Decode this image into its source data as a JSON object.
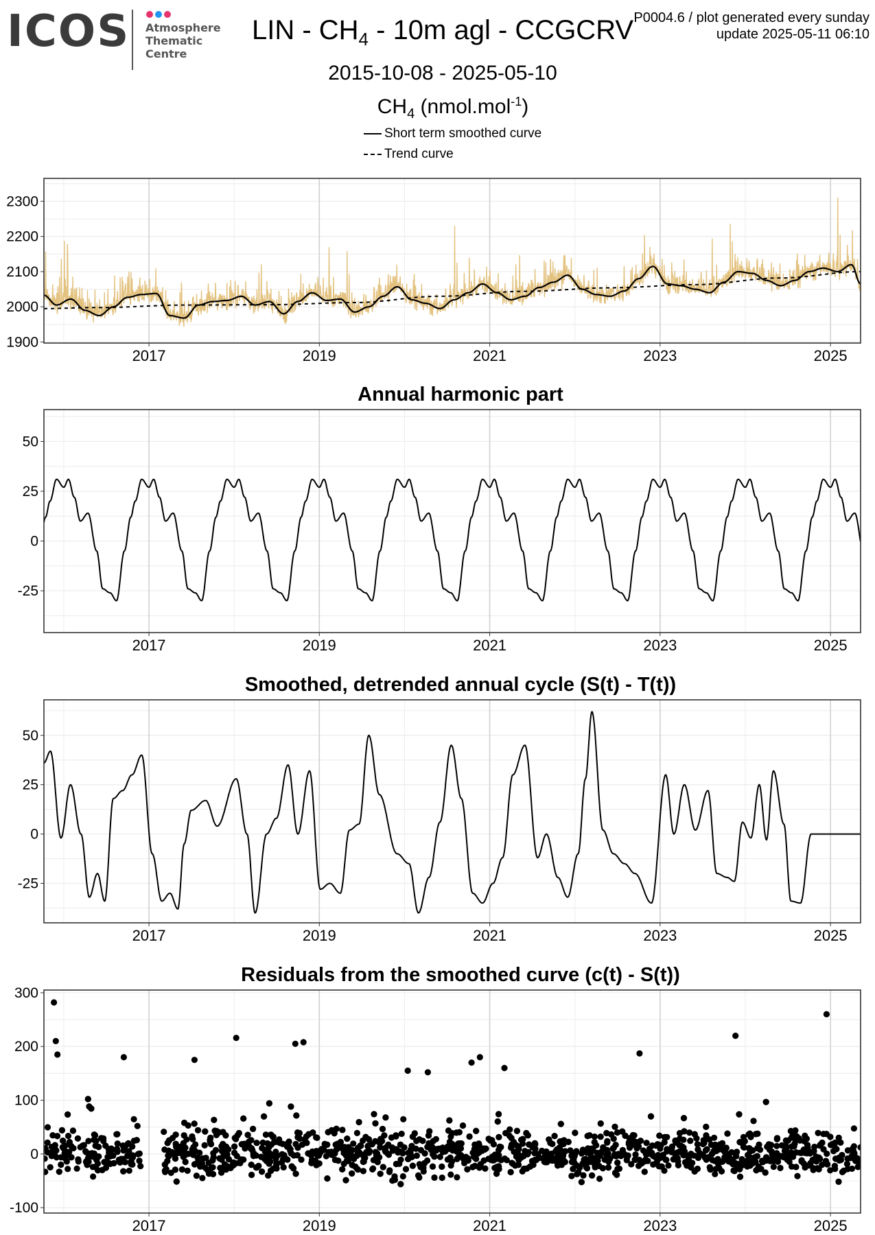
{
  "logo": {
    "wordmark": "ICOS",
    "lines": [
      "Atmosphere",
      "Thematic",
      "Centre"
    ],
    "dot_colors": [
      "#e6336b",
      "#2196f3",
      "#e6336b"
    ]
  },
  "header": {
    "title_before": "LIN - CH",
    "title_sub": "4",
    "title_after": " - 10m agl - CCGCRV",
    "meta_line1": "P0004.6 / plot generated every sunday",
    "meta_line2": "update  2025-05-11 06:10",
    "date_range": "2015-10-08 - 2025-05-10",
    "unit_before": "CH",
    "unit_sub": "4",
    "unit_mid": " (nmol.mol",
    "unit_sup": "-1",
    "unit_after": ")"
  },
  "legend": {
    "items": [
      {
        "label": "Short term smoothed curve",
        "style": "solid"
      },
      {
        "label": "Trend curve",
        "style": "dashed"
      }
    ]
  },
  "colors": {
    "raw_series": "#e3c27f",
    "line": "#000000",
    "grid_major": "#d0d0d0",
    "grid_minor": "#ececec",
    "logo_text": "#3b3b3b"
  },
  "chart_data": [
    {
      "type": "line",
      "title": "",
      "ylabel": "",
      "xlim": [
        "2015-10-08",
        "2025-05-10"
      ],
      "ylim": [
        1897,
        2365
      ],
      "x_ticks": [
        "2017",
        "2019",
        "2021",
        "2023",
        "2025"
      ],
      "y_ticks": [
        1900,
        2000,
        2100,
        2200,
        2300
      ],
      "series": [
        {
          "name": "",
          "role": "raw hourly/daily CH4",
          "color": "#e3c27f",
          "note": "dense noisy signal around smoothed curve, extremes ~1925 to ~2355"
        },
        {
          "name": "Short term smoothed curve",
          "style": "solid",
          "x": [
            "2015-10-08",
            "2015-12-01",
            "2016-02-01",
            "2016-04-01",
            "2016-06-01",
            "2016-08-01",
            "2016-10-01",
            "2016-12-01",
            "2017-02-01",
            "2017-04-01",
            "2017-06-01",
            "2017-08-01",
            "2017-10-01",
            "2017-12-01",
            "2018-02-01",
            "2018-04-01",
            "2018-06-01",
            "2018-08-01",
            "2018-10-01",
            "2018-12-01",
            "2019-02-01",
            "2019-04-01",
            "2019-06-01",
            "2019-08-01",
            "2019-10-01",
            "2019-12-01",
            "2020-02-01",
            "2020-04-01",
            "2020-06-01",
            "2020-08-01",
            "2020-10-01",
            "2020-12-01",
            "2021-02-01",
            "2021-04-01",
            "2021-06-01",
            "2021-08-01",
            "2021-10-01",
            "2021-12-01",
            "2022-02-01",
            "2022-04-01",
            "2022-06-01",
            "2022-08-01",
            "2022-10-01",
            "2022-12-01",
            "2023-02-01",
            "2023-04-01",
            "2023-06-01",
            "2023-08-01",
            "2023-10-01",
            "2023-12-01",
            "2024-02-01",
            "2024-04-01",
            "2024-06-01",
            "2024-08-01",
            "2024-10-01",
            "2024-12-01",
            "2025-02-01",
            "2025-04-01",
            "2025-05-10"
          ],
          "values": [
            2033,
            2005,
            2022,
            1990,
            1975,
            2000,
            2027,
            2035,
            2038,
            1975,
            1968,
            2005,
            2015,
            2018,
            2030,
            2005,
            2015,
            1980,
            2015,
            2040,
            2018,
            2022,
            1985,
            2000,
            2030,
            2057,
            2020,
            2010,
            1995,
            2020,
            2040,
            2065,
            2040,
            2020,
            2030,
            2055,
            2070,
            2090,
            2050,
            2035,
            2030,
            2045,
            2080,
            2115,
            2065,
            2060,
            2050,
            2040,
            2070,
            2100,
            2095,
            2075,
            2060,
            2075,
            2100,
            2110,
            2100,
            2120,
            2065
          ]
        },
        {
          "name": "Trend curve",
          "style": "dashed",
          "x": [
            "2015-10-08",
            "2016-06-01",
            "2017-06-01",
            "2018-06-01",
            "2019-06-01",
            "2020-06-01",
            "2021-06-01",
            "2022-06-01",
            "2023-06-01",
            "2024-06-01",
            "2025-05-10"
          ],
          "values": [
            1995,
            1998,
            2005,
            2006,
            2012,
            2030,
            2044,
            2054,
            2063,
            2082,
            2100
          ]
        }
      ]
    },
    {
      "type": "line",
      "title": "Annual harmonic part",
      "ylabel": "",
      "xlim": [
        "2015-10-08",
        "2025-05-10"
      ],
      "ylim": [
        -46,
        66
      ],
      "x_ticks": [
        "2017",
        "2019",
        "2021",
        "2023",
        "2025"
      ],
      "y_ticks": [
        -25,
        0,
        25,
        50
      ],
      "series": [
        {
          "name": "",
          "periodic": "yearly",
          "phase_dates": [
            "01-01",
            "01-21",
            "02-15",
            "03-13",
            "04-15",
            "05-22",
            "06-17",
            "07-18",
            "08-15",
            "09-18",
            "10-15",
            "11-03",
            "12-01",
            "12-31"
          ],
          "phase_values": [
            27,
            31,
            22,
            10,
            14,
            -5,
            -24,
            -26,
            -30,
            -5,
            12,
            20,
            31,
            27
          ]
        }
      ]
    },
    {
      "type": "line",
      "title": "Smoothed, detrended annual cycle (S(t) - T(t))",
      "ylabel": "",
      "xlim": [
        "2015-10-08",
        "2025-05-10"
      ],
      "ylim": [
        -45,
        68
      ],
      "x_ticks": [
        "2017",
        "2019",
        "2021",
        "2023",
        "2025"
      ],
      "y_ticks": [
        -25,
        0,
        25,
        50
      ],
      "series": [
        {
          "name": "",
          "x": [
            "2015-10-08",
            "2015-11-05",
            "2015-12-20",
            "2016-01-30",
            "2016-03-15",
            "2016-04-20",
            "2016-05-25",
            "2016-06-25",
            "2016-08-01",
            "2016-09-10",
            "2016-10-20",
            "2016-12-01",
            "2017-01-15",
            "2017-02-25",
            "2017-04-01",
            "2017-05-05",
            "2017-06-01",
            "2017-07-01",
            "2017-09-01",
            "2017-10-20",
            "2018-01-10",
            "2018-02-25",
            "2018-04-01",
            "2018-05-20",
            "2018-07-01",
            "2018-08-20",
            "2018-10-01",
            "2018-11-20",
            "2019-01-05",
            "2019-02-15",
            "2019-04-01",
            "2019-05-10",
            "2019-06-20",
            "2019-08-01",
            "2019-09-15",
            "2019-11-30",
            "2020-01-20",
            "2020-03-01",
            "2020-04-15",
            "2020-06-01",
            "2020-07-20",
            "2020-09-01",
            "2020-10-20",
            "2020-12-01",
            "2021-01-15",
            "2021-02-25",
            "2021-04-10",
            "2021-06-01",
            "2021-07-25",
            "2021-09-01",
            "2021-10-20",
            "2021-12-01",
            "2022-01-15",
            "2022-02-15",
            "2022-03-15",
            "2022-05-01",
            "2022-06-15",
            "2022-08-01",
            "2022-09-15",
            "2022-11-25",
            "2023-01-25",
            "2023-03-01",
            "2023-04-15",
            "2023-06-01",
            "2023-07-25",
            "2023-09-01",
            "2023-10-15",
            "2023-11-15",
            "2023-12-20",
            "2024-01-25",
            "2024-03-01",
            "2024-04-01",
            "2024-05-01",
            "2024-06-15",
            "2024-07-15",
            "2024-08-25",
            "2024-10-10",
            "2024-11-20",
            "2025-01-01",
            "2025-02-20",
            "2025-04-01",
            "2025-05-10"
          ],
          "values": [
            36,
            42,
            -2,
            25,
            0,
            -32,
            -20,
            -34,
            18,
            22,
            30,
            40,
            -10,
            -34,
            -30,
            -38,
            -5,
            12,
            17,
            4,
            28,
            0,
            -40,
            0,
            8,
            35,
            0,
            32,
            -28,
            -25,
            -30,
            2,
            5,
            50,
            20,
            -10,
            -15,
            -40,
            -22,
            6,
            45,
            18,
            -30,
            -35,
            -25,
            -12,
            30,
            45,
            -12,
            0,
            -22,
            -32,
            -10,
            28,
            62,
            2,
            -10,
            -15,
            -20,
            -35,
            30,
            0,
            25,
            2,
            22,
            -20,
            -22,
            -24,
            6,
            -2,
            25,
            -3,
            32,
            5,
            -34,
            -35,
            0,
            0,
            0,
            0,
            0,
            0
          ]
        }
      ]
    },
    {
      "type": "scatter",
      "title": "Residuals from the smoothed curve (c(t) - S(t))",
      "ylabel": "",
      "xlim": [
        "2015-10-08",
        "2025-05-10"
      ],
      "ylim": [
        -110,
        305
      ],
      "x_ticks": [
        "2017",
        "2019",
        "2021",
        "2023",
        "2025"
      ],
      "y_ticks": [
        -100,
        0,
        100,
        200,
        300
      ],
      "series": [
        {
          "name": "",
          "note": "daily residual points, mostly within -90 to 150; data gap ~2016-12-01 to 2017-03-01",
          "outliers": {
            "x": [
              "2015-11-20",
              "2015-11-28",
              "2015-12-05",
              "2016-09-15",
              "2017-07-15",
              "2018-01-10",
              "2018-09-20",
              "2018-10-25",
              "2020-01-15",
              "2020-04-10",
              "2020-10-15",
              "2020-11-20",
              "2021-03-05",
              "2022-10-05",
              "2023-11-20",
              "2024-12-15"
            ],
            "values": [
              282,
              210,
              185,
              180,
              175,
              216,
              205,
              208,
              155,
              152,
              170,
              180,
              160,
              187,
              220,
              260
            ]
          },
          "gap": [
            "2016-12-01",
            "2017-03-01"
          ]
        }
      ]
    }
  ]
}
